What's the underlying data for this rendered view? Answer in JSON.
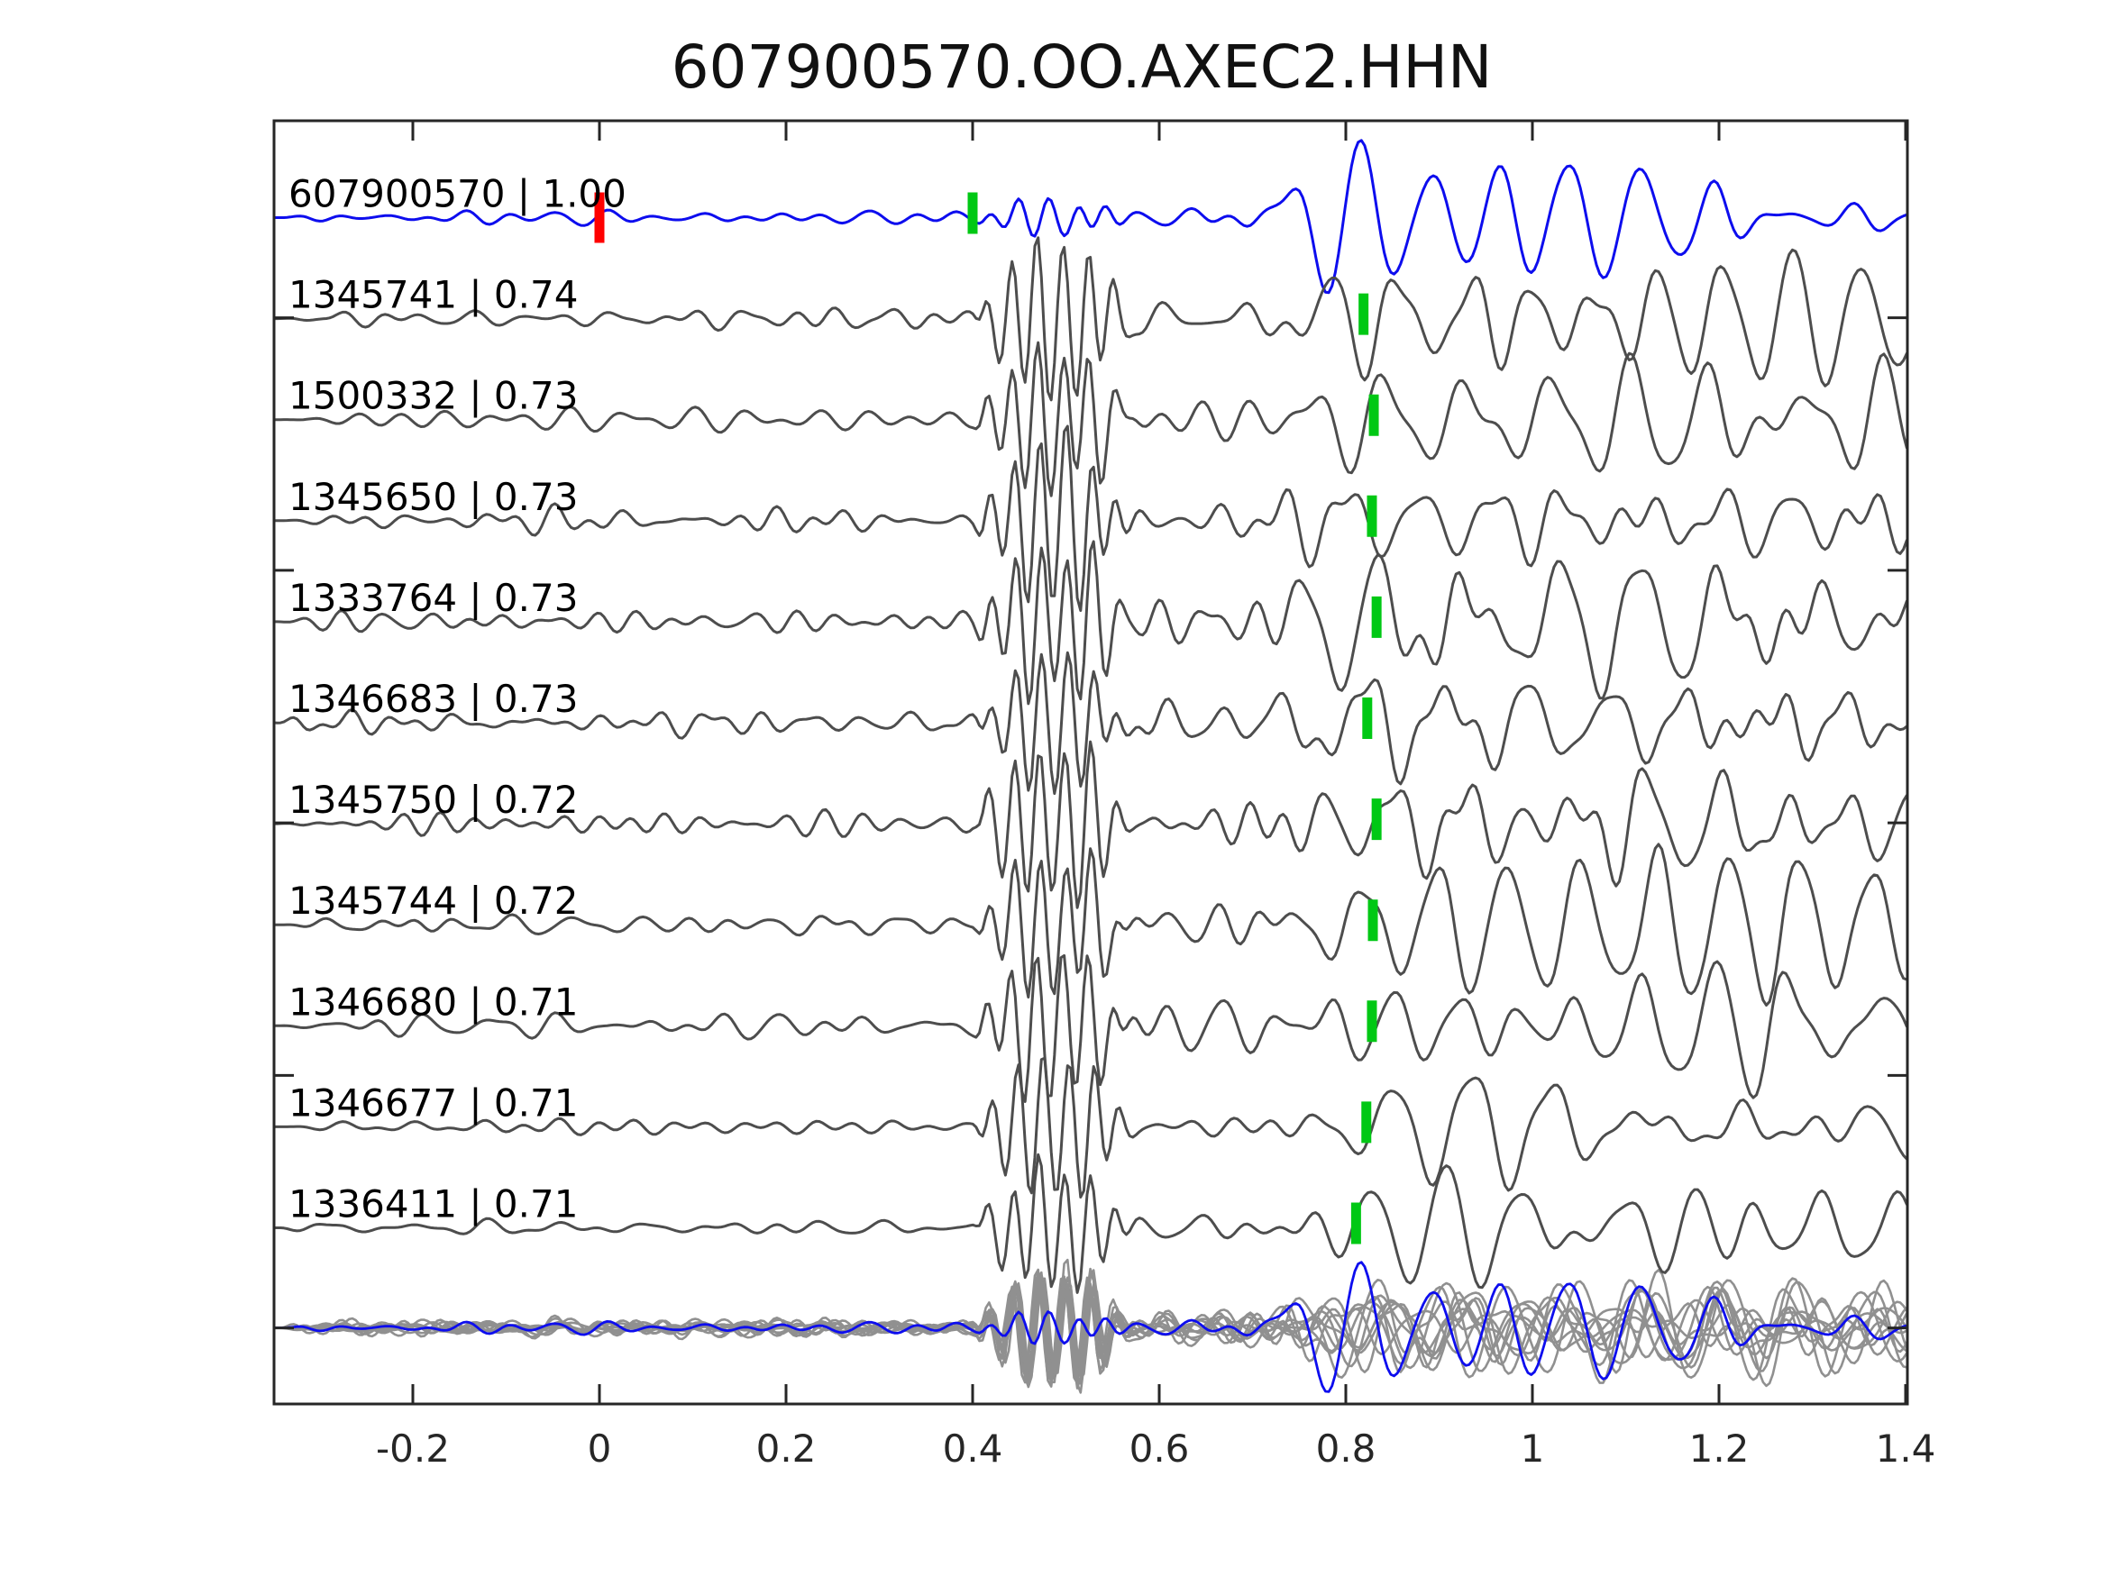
{
  "title": "607900570.OO.AXEC2.HHN",
  "colors": {
    "template_trace": "#0d0dee",
    "match_trace": "#4d4d4d",
    "overlay_trace": "#909090",
    "pick_marker": "#00c814",
    "origin_marker": "#ff0000",
    "axis": "#262626",
    "tick_label": "#262626",
    "trace_label": "#000000",
    "background": "#ffffff"
  },
  "chart_data": {
    "type": "line",
    "title": "607900570.OO.AXEC2.HHN",
    "xlabel": "",
    "ylabel": "",
    "grid": false,
    "legend": "none",
    "xlim": [
      -0.349,
      1.402
    ],
    "ylim": [
      -0.76,
      11.94
    ],
    "x_ticks": [
      -0.2,
      0,
      0.2,
      0.4,
      0.6,
      0.8,
      1,
      1.2,
      1.4
    ],
    "x_tick_labels": [
      "-0.2",
      "0",
      "0.2",
      "0.4",
      "0.6",
      "0.8",
      "1",
      "1.2",
      "1.4"
    ],
    "y_ticks": [
      0,
      2.5,
      5,
      7.5,
      10
    ],
    "traces": [
      {
        "id": "607900570",
        "cc": "1.00",
        "label": "607900570 | 1.00",
        "role": "template",
        "pick_time": 0.4,
        "origin_time": 0.0,
        "row": 0,
        "render": {
          "seed": 3,
          "noise": 7,
          "burst": 20,
          "late": 58
        }
      },
      {
        "id": "1345741",
        "cc": "0.74",
        "label": "1345741 | 0.74",
        "role": "match",
        "pick_time": 0.819,
        "row": 1,
        "render": {
          "seed": 7,
          "noise": 10,
          "burst": 86,
          "late": 52
        }
      },
      {
        "id": "1500332",
        "cc": "0.73",
        "label": "1500332 | 0.73",
        "role": "match",
        "pick_time": 0.83,
        "row": 2,
        "render": {
          "seed": 11,
          "noise": 14,
          "burst": 78,
          "late": 50
        }
      },
      {
        "id": "1345650",
        "cc": "0.73",
        "label": "1345650 | 0.73",
        "role": "match",
        "pick_time": 0.828,
        "row": 3,
        "render": {
          "seed": 13,
          "noise": 12,
          "burst": 90,
          "late": 56
        }
      },
      {
        "id": "1333764",
        "cc": "0.73",
        "label": "1333764 | 0.73",
        "role": "match",
        "pick_time": 0.833,
        "row": 4,
        "render": {
          "seed": 17,
          "noise": 11,
          "burst": 84,
          "late": 58
        }
      },
      {
        "id": "1346683",
        "cc": "0.73",
        "label": "1346683 | 0.73",
        "role": "match",
        "pick_time": 0.823,
        "row": 5,
        "render": {
          "seed": 23,
          "noise": 12,
          "burst": 70,
          "late": 50
        }
      },
      {
        "id": "1345750",
        "cc": "0.72",
        "label": "1345750 | 0.72",
        "role": "match",
        "pick_time": 0.833,
        "row": 6,
        "render": {
          "seed": 29,
          "noise": 11,
          "burst": 88,
          "late": 48
        }
      },
      {
        "id": "1345744",
        "cc": "0.72",
        "label": "1345744 | 0.72",
        "role": "match",
        "pick_time": 0.829,
        "row": 7,
        "render": {
          "seed": 31,
          "noise": 11,
          "burst": 76,
          "late": 50
        }
      },
      {
        "id": "1346680",
        "cc": "0.71",
        "label": "1346680 | 0.71",
        "role": "match",
        "pick_time": 0.828,
        "row": 8,
        "render": {
          "seed": 37,
          "noise": 12,
          "burst": 82,
          "late": 52
        }
      },
      {
        "id": "1346677",
        "cc": "0.71",
        "label": "1346677 | 0.71",
        "role": "match",
        "pick_time": 0.822,
        "row": 9,
        "render": {
          "seed": 41,
          "noise": 11,
          "burst": 80,
          "late": 50
        }
      },
      {
        "id": "1336411",
        "cc": "0.71",
        "label": "1336411 | 0.71",
        "role": "match",
        "pick_time": 0.811,
        "row": 10,
        "render": {
          "seed": 43,
          "noise": 8,
          "burst": 68,
          "late": 46
        }
      }
    ],
    "overlay": {
      "description": "all traces superimposed on bottom row",
      "scale_match": 0.72,
      "scale_template": 0.85
    }
  }
}
